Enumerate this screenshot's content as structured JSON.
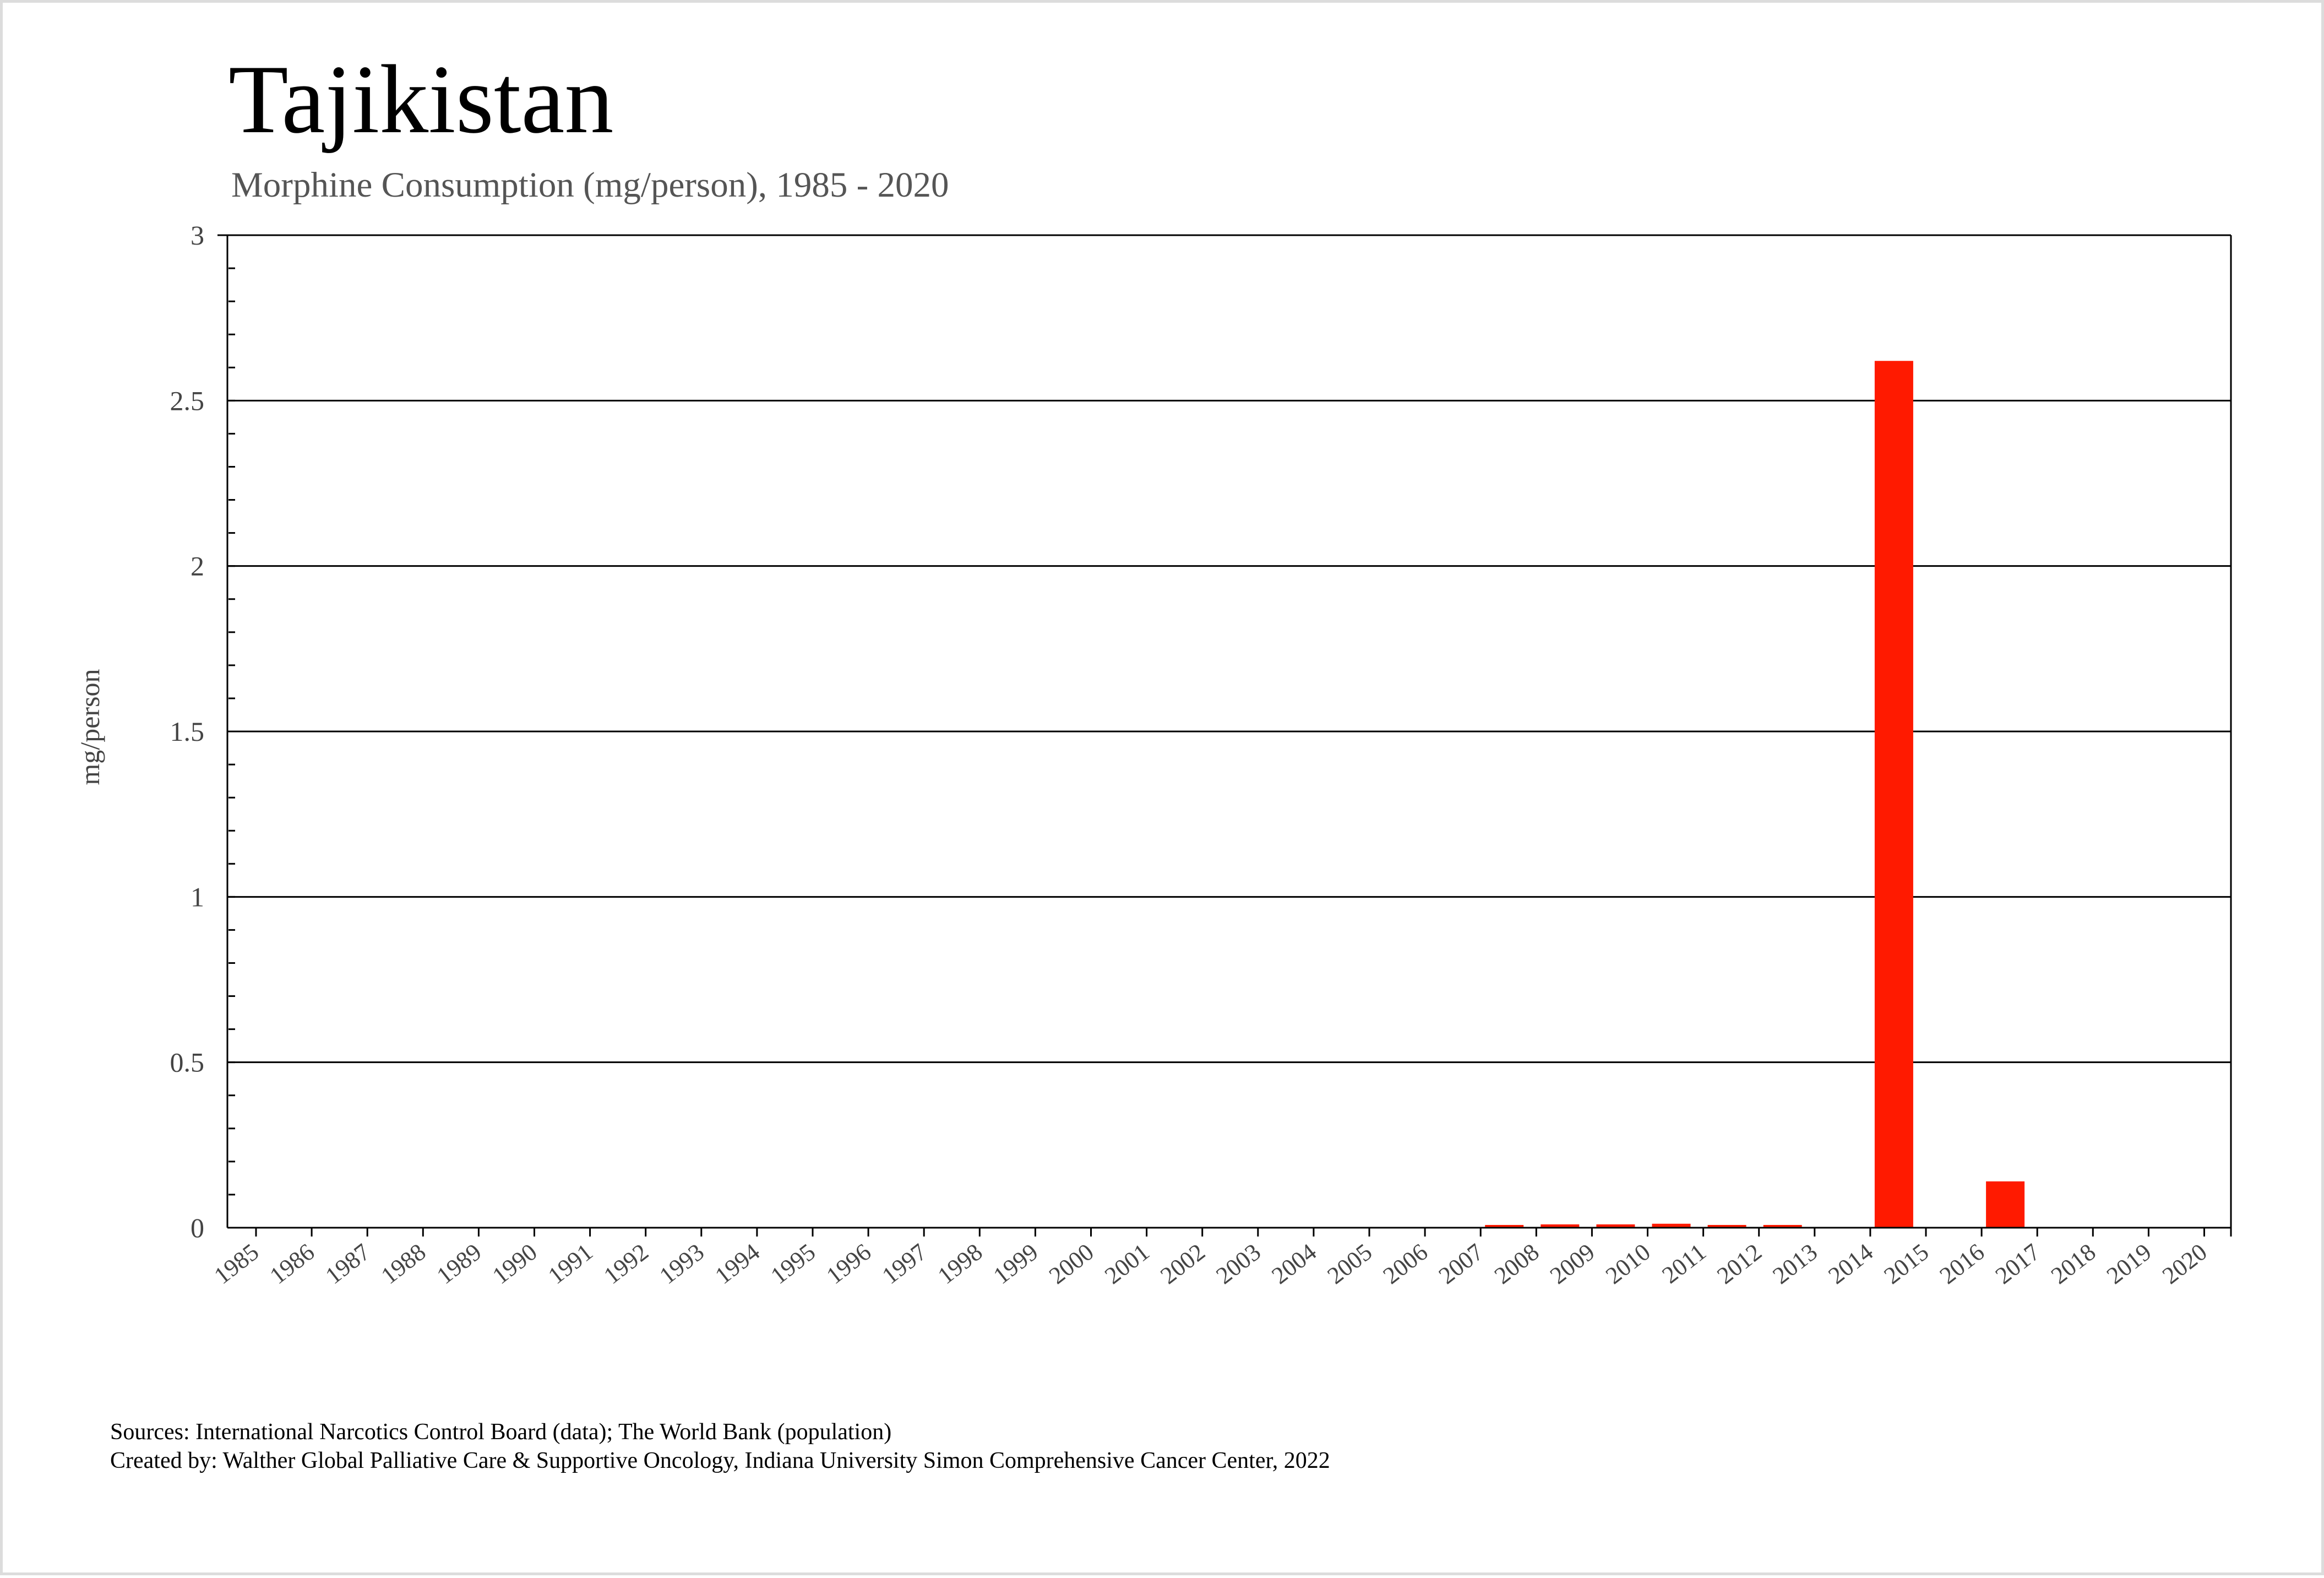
{
  "title": "Tajikistan",
  "subtitle": "Morphine Consumption (mg/person), 1985 - 2020",
  "sources": {
    "line1": "Sources: International Narcotics Control Board (data); The World Bank (population)",
    "line2": "Created by: Walther  Global Palliative Care & Supportive Oncology, Indiana University Simon Comprehensive Cancer Center, 2022"
  },
  "colors": {
    "bar": "#ff1a00",
    "grid": "#000000",
    "text": "#444444"
  },
  "chart_data": {
    "type": "bar",
    "title": "Tajikistan",
    "subtitle": "Morphine Consumption (mg/person), 1985 - 2020",
    "ylabel": "mg/person",
    "xlabel": "",
    "ylim": [
      0,
      3
    ],
    "yticks": [
      "0",
      "0.5",
      "1",
      "1.5",
      "2",
      "2.5",
      "3"
    ],
    "grid": true,
    "categories": [
      "1985",
      "1986",
      "1987",
      "1988",
      "1989",
      "1990",
      "1991",
      "1992",
      "1993",
      "1994",
      "1995",
      "1996",
      "1997",
      "1998",
      "1999",
      "2000",
      "2001",
      "2002",
      "2003",
      "2004",
      "2005",
      "2006",
      "2007",
      "2008",
      "2009",
      "2010",
      "2011",
      "2012",
      "2013",
      "2014",
      "2015",
      "2016",
      "2017",
      "2018",
      "2019",
      "2020"
    ],
    "values": [
      0,
      0,
      0,
      0,
      0,
      0,
      0,
      0,
      0,
      0,
      0,
      0,
      0,
      0,
      0,
      0,
      0,
      0,
      0,
      0,
      0,
      0,
      0.005,
      0.01,
      0.01,
      0.012,
      0.006,
      0.008,
      0,
      2.62,
      0,
      0.14,
      0,
      0,
      0,
      0
    ]
  }
}
